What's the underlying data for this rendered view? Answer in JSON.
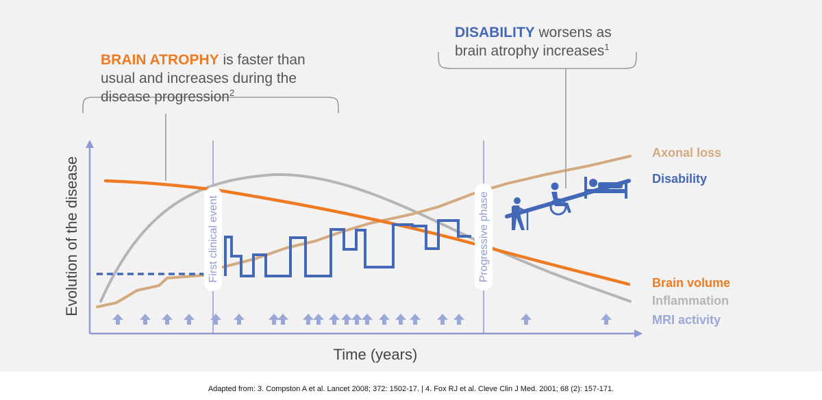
{
  "annotations": {
    "atrophy": {
      "keyword": "BRAIN ATROPHY",
      "line1_rest": " is faster than",
      "line2": "usual and increases during the",
      "line3": "disease progression",
      "superscript": "2"
    },
    "disability": {
      "keyword": "DISABILITY",
      "line1_rest": " worsens as",
      "line2": "brain atrophy increases",
      "superscript": "1"
    }
  },
  "axes": {
    "y_label": "Evolution of the disease",
    "x_label": "Time (years)"
  },
  "events": {
    "first_clinical": "First clinical event",
    "progressive_phase": "Progressive phase"
  },
  "legend": {
    "axonal_loss": "Axonal loss",
    "disability": "Disability",
    "brain_volume": "Brain volume",
    "inflammation": "Inflammation",
    "mri_activity": "MRI activity"
  },
  "colors": {
    "axonal_loss": "#d3aa80",
    "disability": "#4468b8",
    "brain_volume": "#ee7b22",
    "inflammation": "#b5b5b5",
    "mri_activity": "#9aa8d8",
    "axis": "#8f9bd0",
    "background": "#f2f2f3"
  },
  "mri_arrow_count": 24,
  "icons": [
    "person-with-cane-icon",
    "wheelchair-user-icon",
    "person-in-bed-icon"
  ],
  "footer": "Adapted from: 3. Compston A et al. Lancet 2008; 372: 1502-17. | 4. Fox RJ et al. Cleve Clin J Med. 2001; 68 (2): 157-171."
}
